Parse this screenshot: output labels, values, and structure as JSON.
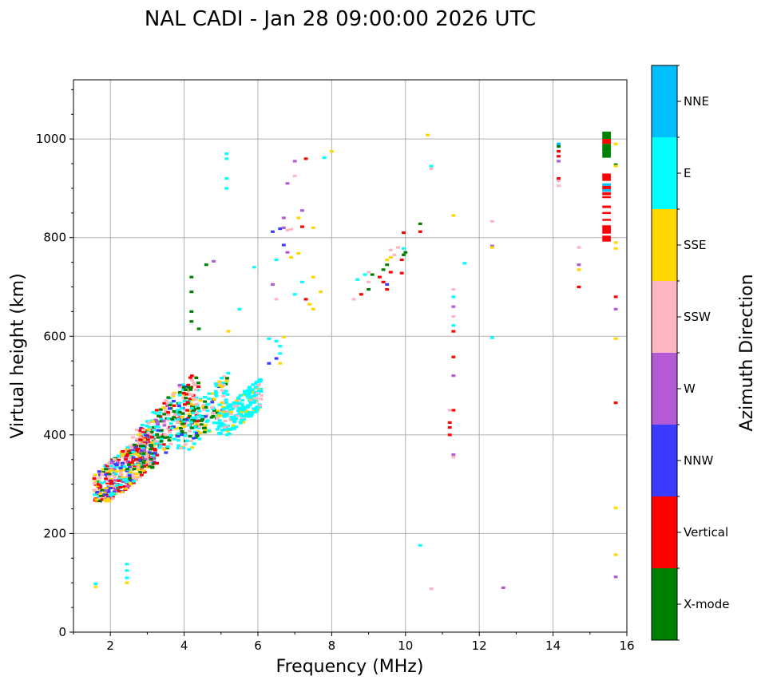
{
  "chart_data": {
    "type": "scatter",
    "title": "NAL CADI - Jan 28 09:00:00 2026 UTC",
    "xlabel": "Frequency (MHz)",
    "ylabel": "Virtual height (km)",
    "xlim": [
      1,
      16
    ],
    "ylim": [
      0,
      1120
    ],
    "x_ticks": [
      2,
      4,
      6,
      8,
      10,
      12,
      14,
      16
    ],
    "y_ticks": [
      0,
      200,
      400,
      600,
      800,
      1000
    ],
    "grid": true,
    "colorbar": {
      "label": "Azimuth Direction",
      "categories": [
        {
          "name": "X-mode",
          "color": "#008000"
        },
        {
          "name": "Vertical",
          "color": "#ff0000"
        },
        {
          "name": "NNW",
          "color": "#3b3bff"
        },
        {
          "name": "W",
          "color": "#b45ad6"
        },
        {
          "name": "SSW",
          "color": "#ffb6c1"
        },
        {
          "name": "SSE",
          "color": "#ffd700"
        },
        {
          "name": "E",
          "color": "#00ffff"
        },
        {
          "name": "NNE",
          "color": "#00bfff"
        }
      ]
    },
    "points": [
      {
        "f": 1.6,
        "h": 92,
        "c": "SSE"
      },
      {
        "f": 1.6,
        "h": 98,
        "c": "E"
      },
      {
        "f": 2.45,
        "h": 100,
        "c": "SSE"
      },
      {
        "f": 2.45,
        "h": 110,
        "c": "E"
      },
      {
        "f": 2.45,
        "h": 125,
        "c": "E"
      },
      {
        "f": 2.45,
        "h": 138,
        "c": "E"
      },
      {
        "f": 5.15,
        "h": 900,
        "c": "E"
      },
      {
        "f": 5.15,
        "h": 920,
        "c": "E"
      },
      {
        "f": 5.15,
        "h": 960,
        "c": "E"
      },
      {
        "f": 5.15,
        "h": 970,
        "c": "E"
      },
      {
        "f": 7.0,
        "h": 955,
        "c": "W"
      },
      {
        "f": 7.3,
        "h": 960,
        "c": "Vertical"
      },
      {
        "f": 6.8,
        "h": 910,
        "c": "W"
      },
      {
        "f": 7.0,
        "h": 925,
        "c": "SSW"
      },
      {
        "f": 7.8,
        "h": 962,
        "c": "E"
      },
      {
        "f": 8.0,
        "h": 975,
        "c": "SSE"
      },
      {
        "f": 6.4,
        "h": 812,
        "c": "NNW"
      },
      {
        "f": 6.6,
        "h": 818,
        "c": "NNW"
      },
      {
        "f": 6.7,
        "h": 820,
        "c": "W"
      },
      {
        "f": 6.8,
        "h": 815,
        "c": "SSW"
      },
      {
        "f": 6.9,
        "h": 817,
        "c": "SSW"
      },
      {
        "f": 7.1,
        "h": 840,
        "c": "SSE"
      },
      {
        "f": 7.2,
        "h": 822,
        "c": "Vertical"
      },
      {
        "f": 7.5,
        "h": 820,
        "c": "SSE"
      },
      {
        "f": 6.7,
        "h": 840,
        "c": "W"
      },
      {
        "f": 7.2,
        "h": 855,
        "c": "W"
      },
      {
        "f": 6.7,
        "h": 785,
        "c": "NNW"
      },
      {
        "f": 6.8,
        "h": 770,
        "c": "W"
      },
      {
        "f": 6.9,
        "h": 760,
        "c": "SSE"
      },
      {
        "f": 6.5,
        "h": 755,
        "c": "E"
      },
      {
        "f": 7.1,
        "h": 768,
        "c": "SSE"
      },
      {
        "f": 7.5,
        "h": 720,
        "c": "SSE"
      },
      {
        "f": 6.4,
        "h": 705,
        "c": "W"
      },
      {
        "f": 6.5,
        "h": 675,
        "c": "SSW"
      },
      {
        "f": 7.0,
        "h": 685,
        "c": "E"
      },
      {
        "f": 7.2,
        "h": 710,
        "c": "E"
      },
      {
        "f": 7.3,
        "h": 675,
        "c": "Vertical"
      },
      {
        "f": 7.4,
        "h": 665,
        "c": "SSE"
      },
      {
        "f": 7.5,
        "h": 655,
        "c": "SSE"
      },
      {
        "f": 7.7,
        "h": 690,
        "c": "SSE"
      },
      {
        "f": 4.2,
        "h": 720,
        "c": "X-mode"
      },
      {
        "f": 4.2,
        "h": 690,
        "c": "X-mode"
      },
      {
        "f": 4.2,
        "h": 650,
        "c": "X-mode"
      },
      {
        "f": 4.2,
        "h": 630,
        "c": "X-mode"
      },
      {
        "f": 4.4,
        "h": 615,
        "c": "X-mode"
      },
      {
        "f": 4.6,
        "h": 745,
        "c": "X-mode"
      },
      {
        "f": 4.8,
        "h": 752,
        "c": "W"
      },
      {
        "f": 5.2,
        "h": 610,
        "c": "SSE"
      },
      {
        "f": 5.5,
        "h": 655,
        "c": "E"
      },
      {
        "f": 5.9,
        "h": 740,
        "c": "E"
      },
      {
        "f": 6.3,
        "h": 595,
        "c": "E"
      },
      {
        "f": 6.5,
        "h": 590,
        "c": "E"
      },
      {
        "f": 6.6,
        "h": 580,
        "c": "E"
      },
      {
        "f": 6.6,
        "h": 565,
        "c": "E"
      },
      {
        "f": 6.3,
        "h": 545,
        "c": "NNW"
      },
      {
        "f": 6.5,
        "h": 555,
        "c": "NNW"
      },
      {
        "f": 6.6,
        "h": 545,
        "c": "SSE"
      },
      {
        "f": 6.7,
        "h": 598,
        "c": "SSE"
      },
      {
        "f": 8.6,
        "h": 675,
        "c": "SSW"
      },
      {
        "f": 8.8,
        "h": 685,
        "c": "Vertical"
      },
      {
        "f": 8.7,
        "h": 715,
        "c": "E"
      },
      {
        "f": 8.9,
        "h": 725,
        "c": "E"
      },
      {
        "f": 9.0,
        "h": 710,
        "c": "SSW"
      },
      {
        "f": 9.0,
        "h": 730,
        "c": "SSW"
      },
      {
        "f": 9.0,
        "h": 695,
        "c": "X-mode"
      },
      {
        "f": 9.1,
        "h": 725,
        "c": "X-mode"
      },
      {
        "f": 9.3,
        "h": 720,
        "c": "Vertical"
      },
      {
        "f": 9.4,
        "h": 735,
        "c": "X-mode"
      },
      {
        "f": 9.5,
        "h": 745,
        "c": "X-mode"
      },
      {
        "f": 9.5,
        "h": 755,
        "c": "SSE"
      },
      {
        "f": 9.6,
        "h": 760,
        "c": "SSE"
      },
      {
        "f": 9.6,
        "h": 775,
        "c": "SSW"
      },
      {
        "f": 9.7,
        "h": 765,
        "c": "SSW"
      },
      {
        "f": 9.8,
        "h": 780,
        "c": "SSW"
      },
      {
        "f": 9.5,
        "h": 705,
        "c": "NNW"
      },
      {
        "f": 9.5,
        "h": 695,
        "c": "Vertical"
      },
      {
        "f": 9.4,
        "h": 710,
        "c": "Vertical"
      },
      {
        "f": 9.6,
        "h": 730,
        "c": "Vertical"
      },
      {
        "f": 9.9,
        "h": 728,
        "c": "Vertical"
      },
      {
        "f": 9.9,
        "h": 755,
        "c": "Vertical"
      },
      {
        "f": 9.95,
        "h": 765,
        "c": "X-mode"
      },
      {
        "f": 10.0,
        "h": 770,
        "c": "X-mode"
      },
      {
        "f": 9.95,
        "h": 778,
        "c": "E"
      },
      {
        "f": 9.95,
        "h": 810,
        "c": "Vertical"
      },
      {
        "f": 10.4,
        "h": 812,
        "c": "Vertical"
      },
      {
        "f": 10.4,
        "h": 828,
        "c": "X-mode"
      },
      {
        "f": 10.6,
        "h": 1008,
        "c": "SSE"
      },
      {
        "f": 10.7,
        "h": 945,
        "c": "E"
      },
      {
        "f": 10.7,
        "h": 940,
        "c": "SSW"
      },
      {
        "f": 11.3,
        "h": 845,
        "c": "SSE"
      },
      {
        "f": 11.6,
        "h": 748,
        "c": "E"
      },
      {
        "f": 11.3,
        "h": 695,
        "c": "SSW"
      },
      {
        "f": 11.3,
        "h": 680,
        "c": "E"
      },
      {
        "f": 11.3,
        "h": 660,
        "c": "W"
      },
      {
        "f": 11.3,
        "h": 640,
        "c": "SSW"
      },
      {
        "f": 11.3,
        "h": 622,
        "c": "E"
      },
      {
        "f": 11.3,
        "h": 610,
        "c": "Vertical"
      },
      {
        "f": 11.3,
        "h": 558,
        "c": "Vertical"
      },
      {
        "f": 11.3,
        "h": 520,
        "c": "W"
      },
      {
        "f": 11.3,
        "h": 450,
        "c": "Vertical"
      },
      {
        "f": 11.2,
        "h": 450,
        "c": "SSW"
      },
      {
        "f": 11.2,
        "h": 425,
        "c": "Vertical"
      },
      {
        "f": 11.2,
        "h": 415,
        "c": "Vertical"
      },
      {
        "f": 11.2,
        "h": 400,
        "c": "Vertical"
      },
      {
        "f": 11.3,
        "h": 360,
        "c": "W"
      },
      {
        "f": 11.3,
        "h": 355,
        "c": "SSW"
      },
      {
        "f": 10.4,
        "h": 176,
        "c": "E"
      },
      {
        "f": 10.7,
        "h": 88,
        "c": "SSW"
      },
      {
        "f": 12.65,
        "h": 90,
        "c": "W"
      },
      {
        "f": 12.35,
        "h": 833,
        "c": "SSW"
      },
      {
        "f": 12.35,
        "h": 783,
        "c": "W"
      },
      {
        "f": 12.35,
        "h": 780,
        "c": "SSE"
      },
      {
        "f": 12.35,
        "h": 597,
        "c": "E"
      },
      {
        "f": 14.15,
        "h": 990,
        "c": "NNE"
      },
      {
        "f": 14.15,
        "h": 985,
        "c": "X-mode"
      },
      {
        "f": 14.15,
        "h": 975,
        "c": "Vertical"
      },
      {
        "f": 14.15,
        "h": 965,
        "c": "Vertical"
      },
      {
        "f": 14.15,
        "h": 955,
        "c": "W"
      },
      {
        "f": 14.15,
        "h": 920,
        "c": "Vertical"
      },
      {
        "f": 14.15,
        "h": 915,
        "c": "SSW"
      },
      {
        "f": 14.15,
        "h": 905,
        "c": "SSW"
      },
      {
        "f": 14.7,
        "h": 780,
        "c": "SSW"
      },
      {
        "f": 14.7,
        "h": 745,
        "c": "W"
      },
      {
        "f": 14.7,
        "h": 735,
        "c": "SSE"
      },
      {
        "f": 14.7,
        "h": 700,
        "c": "Vertical"
      },
      {
        "f": 15.7,
        "h": 990,
        "c": "SSE"
      },
      {
        "f": 15.7,
        "h": 948,
        "c": "X-mode"
      },
      {
        "f": 15.7,
        "h": 945,
        "c": "SSE"
      },
      {
        "f": 15.7,
        "h": 790,
        "c": "SSE"
      },
      {
        "f": 15.7,
        "h": 778,
        "c": "SSE"
      },
      {
        "f": 15.7,
        "h": 680,
        "c": "Vertical"
      },
      {
        "f": 15.7,
        "h": 655,
        "c": "W"
      },
      {
        "f": 15.7,
        "h": 595,
        "c": "SSE"
      },
      {
        "f": 15.7,
        "h": 465,
        "c": "Vertical"
      },
      {
        "f": 15.7,
        "h": 252,
        "c": "SSE"
      },
      {
        "f": 15.7,
        "h": 157,
        "c": "SSE"
      },
      {
        "f": 15.7,
        "h": 112,
        "c": "W"
      }
    ],
    "blocks": [
      {
        "f": 15.45,
        "h0": 1015,
        "h1": 1000,
        "c": "X-mode"
      },
      {
        "f": 15.45,
        "h0": 1000,
        "h1": 990,
        "c": "Vertical"
      },
      {
        "f": 15.45,
        "h0": 990,
        "h1": 975,
        "c": "X-mode"
      },
      {
        "f": 15.45,
        "h0": 975,
        "h1": 962,
        "c": "X-mode"
      },
      {
        "f": 15.45,
        "h0": 930,
        "h1": 915,
        "c": "Vertical"
      },
      {
        "f": 15.45,
        "h0": 910,
        "h1": 905,
        "c": "NNE"
      },
      {
        "f": 15.45,
        "h0": 905,
        "h1": 898,
        "c": "Vertical"
      },
      {
        "f": 15.45,
        "h0": 898,
        "h1": 893,
        "c": "NNE"
      },
      {
        "f": 15.45,
        "h0": 892,
        "h1": 886,
        "c": "Vertical"
      },
      {
        "f": 15.45,
        "h0": 884,
        "h1": 880,
        "c": "Vertical"
      },
      {
        "f": 15.45,
        "h0": 865,
        "h1": 860,
        "c": "Vertical"
      },
      {
        "f": 15.45,
        "h0": 852,
        "h1": 848,
        "c": "Vertical"
      },
      {
        "f": 15.45,
        "h0": 838,
        "h1": 834,
        "c": "Vertical"
      },
      {
        "f": 15.45,
        "h0": 825,
        "h1": 808,
        "c": "Vertical"
      },
      {
        "f": 15.45,
        "h0": 804,
        "h1": 792,
        "c": "Vertical"
      }
    ],
    "clouds": [
      {
        "f0": 1.55,
        "f1": 3.2,
        "h0": 265,
        "h1": 450,
        "n": 480,
        "mix": {
          "Vertical": 3,
          "SSW": 3,
          "SSE": 3,
          "E": 2,
          "NNW": 2,
          "X-mode": 1,
          "W": 1
        },
        "seed": 11
      },
      {
        "f0": 2.6,
        "f1": 4.4,
        "h0": 330,
        "h1": 580,
        "n": 330,
        "mix": {
          "X-mode": 3,
          "SSW": 3,
          "E": 2,
          "Vertical": 2,
          "NNW": 1,
          "SSE": 1,
          "W": 1
        },
        "seed": 23
      },
      {
        "f0": 3.8,
        "f1": 5.2,
        "h0": 370,
        "h1": 560,
        "n": 160,
        "mix": {
          "E": 3,
          "SSE": 2,
          "X-mode": 2,
          "SSW": 1,
          "NNW": 1
        },
        "seed": 37
      },
      {
        "f0": 4.9,
        "f1": 6.1,
        "h0": 400,
        "h1": 540,
        "n": 230,
        "mix": {
          "E": 6,
          "SSE": 1,
          "SSW": 1
        },
        "seed": 51
      }
    ]
  }
}
